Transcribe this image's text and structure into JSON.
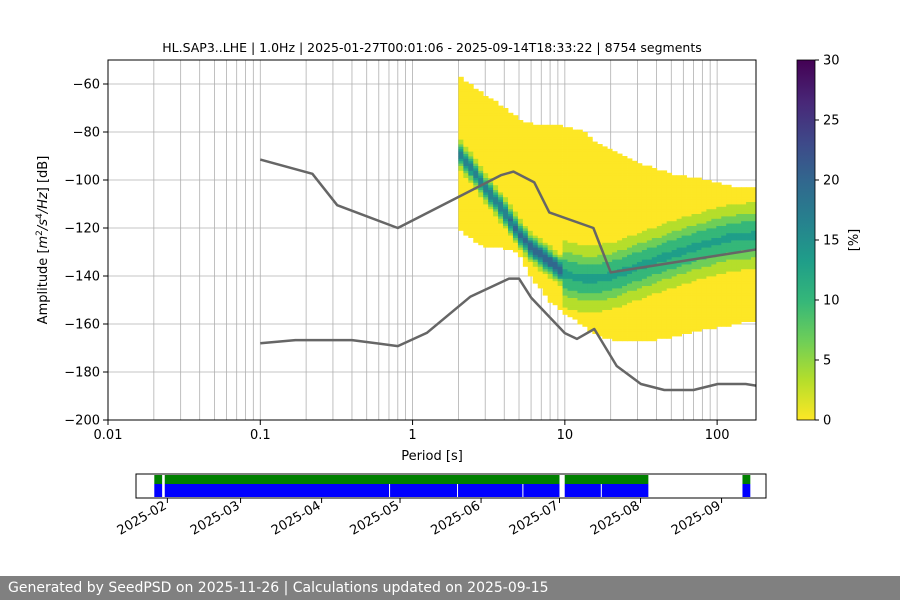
{
  "chart_data": {
    "type": "heatmap",
    "title": "HL.SAP3..LHE | 1.0Hz | 2025-01-27T00:01:06 - 2025-09-14T18:33:22 | 8754 segments",
    "xlabel": "Period [s]",
    "ylabel": "Amplitude [m²/s⁴/Hz] [dB]",
    "x_scale": "log",
    "xlim": [
      0.01,
      180
    ],
    "ylim": [
      -200,
      -50
    ],
    "x_tick_labels": [
      "0.01",
      "0.1",
      "1",
      "10",
      "100"
    ],
    "y_ticks": [
      -200,
      -180,
      -160,
      -140,
      -120,
      -100,
      -80,
      -60
    ],
    "grid": true,
    "colorbar": {
      "label": "[%]",
      "min": 0,
      "max": 30,
      "ticks": [
        0,
        5,
        10,
        15,
        20,
        25,
        30
      ],
      "colors": [
        "#fde725",
        "#b5de2b",
        "#6ece58",
        "#35b779",
        "#1f9e89",
        "#26828e",
        "#31688e",
        "#3e4989",
        "#482878",
        "#440154"
      ]
    },
    "pdf_band": {
      "period": [
        2,
        3,
        4,
        5,
        6,
        8,
        10,
        13,
        16,
        20,
        30,
        50,
        80,
        120,
        180
      ],
      "upper_db": [
        -57,
        -65,
        -70,
        -75,
        -77,
        -77,
        -78,
        -80,
        -85,
        -88,
        -93,
        -98,
        -100,
        -103,
        -103
      ],
      "lower_db": [
        -120,
        -128,
        -128,
        -130,
        -140,
        -150,
        -155,
        -160,
        -164,
        -166,
        -167,
        -165,
        -162,
        -160,
        -158
      ],
      "mode_db": [
        -88,
        -103,
        -113,
        -122,
        -128,
        -134,
        -139,
        -141,
        -141,
        -140,
        -136,
        -131,
        -127,
        -124,
        -123
      ]
    },
    "nhnm": {
      "period": [
        0.1,
        0.22,
        0.32,
        0.8,
        3.8,
        4.6,
        6.3,
        7.9,
        15.4,
        20,
        354.8
      ],
      "db": [
        -91.5,
        -97.4,
        -110.5,
        -120,
        -98,
        -96.5,
        -101,
        -113.5,
        -120,
        -138.5,
        -126
      ]
    },
    "nlnm": {
      "period": [
        0.1,
        0.17,
        0.4,
        0.8,
        1.24,
        2.4,
        4.3,
        5,
        6,
        10,
        12,
        15.6,
        21.9,
        31.6,
        45,
        70,
        101,
        154,
        180
      ],
      "db": [
        -168,
        -166.7,
        -166.7,
        -169.2,
        -163.7,
        -148.6,
        -141.1,
        -141.1,
        -149,
        -163.8,
        -166.2,
        -162.1,
        -177.5,
        -185,
        -187.5,
        -187.5,
        -185,
        -185,
        -185.7
      ]
    },
    "availability": {
      "date_ticks": [
        "2025-02",
        "2025-03",
        "2025-04",
        "2025-05",
        "2025-06",
        "2025-07",
        "2025-08",
        "2025-09"
      ],
      "data_segments": [
        [
          "2025-01-27",
          "2025-01-30"
        ],
        [
          "2025-01-31",
          "2025-07-01"
        ],
        [
          "2025-07-03",
          "2025-08-04"
        ],
        [
          "2025-09-09",
          "2025-09-12"
        ]
      ],
      "gaps": [
        "2025-04-27",
        "2025-05-23",
        "2025-06-17",
        "2025-07-17"
      ],
      "colors": {
        "available": "#0000ff",
        "processed": "#008000"
      }
    }
  },
  "footer": {
    "text": "Generated by SeedPSD on 2025-11-26 | Calculations updated on 2025-09-15"
  }
}
